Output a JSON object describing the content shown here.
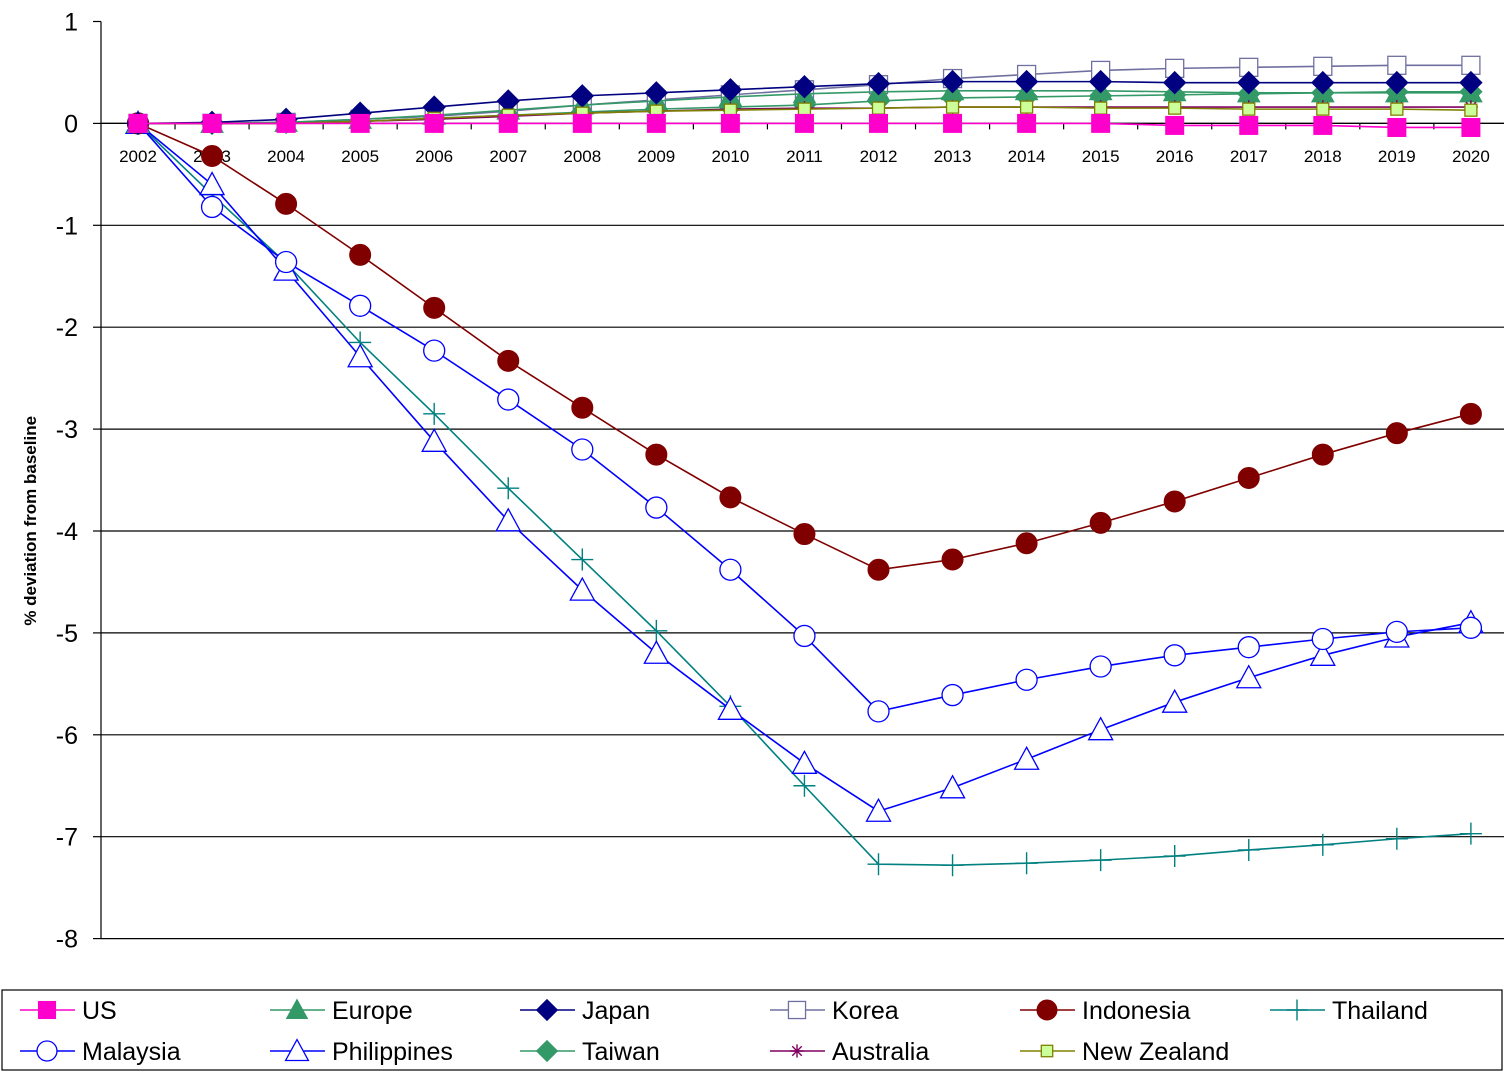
{
  "chart_data": {
    "type": "line",
    "title": "",
    "xlabel": "",
    "ylabel": "% deviation from baseline",
    "ylim": [
      -8,
      1
    ],
    "yticks": [
      "1",
      "0",
      "-1",
      "-2",
      "-3",
      "-4",
      "-5",
      "-6",
      "-7",
      "-8"
    ],
    "x": [
      "2002",
      "2003",
      "2004",
      "2005",
      "2006",
      "2007",
      "2008",
      "2009",
      "2010",
      "2011",
      "2012",
      "2013",
      "2014",
      "2015",
      "2016",
      "2017",
      "2018",
      "2019",
      "2020"
    ],
    "grid": "horizontal",
    "legend_position": "bottom",
    "series": [
      {
        "name": "US",
        "color": "#ff00cc",
        "marker": "square-filled",
        "values": [
          0,
          0,
          0,
          0,
          0,
          0,
          0,
          0,
          0,
          0,
          0,
          0,
          0,
          0,
          -0.02,
          -0.02,
          -0.02,
          -0.04,
          -0.04
        ]
      },
      {
        "name": "Europe",
        "color": "#339966",
        "marker": "triangle-filled",
        "values": [
          0,
          0,
          0.01,
          0.04,
          0.08,
          0.13,
          0.18,
          0.22,
          0.26,
          0.29,
          0.31,
          0.32,
          0.32,
          0.32,
          0.31,
          0.3,
          0.3,
          0.3,
          0.3
        ]
      },
      {
        "name": "Japan",
        "color": "#000080",
        "marker": "diamond-filled",
        "values": [
          0,
          0.01,
          0.04,
          0.1,
          0.16,
          0.22,
          0.27,
          0.3,
          0.33,
          0.36,
          0.39,
          0.41,
          0.41,
          0.41,
          0.4,
          0.4,
          0.4,
          0.4,
          0.4
        ]
      },
      {
        "name": "Korea",
        "color": "#7070a0",
        "marker": "square-open",
        "values": [
          0,
          0,
          0.01,
          0.04,
          0.07,
          0.12,
          0.18,
          0.23,
          0.28,
          0.33,
          0.38,
          0.44,
          0.48,
          0.52,
          0.54,
          0.55,
          0.56,
          0.57,
          0.57
        ]
      },
      {
        "name": "Indonesia",
        "color": "#800000",
        "marker": "circle-filled",
        "values": [
          0,
          -0.32,
          -0.79,
          -1.29,
          -1.81,
          -2.33,
          -2.79,
          -3.25,
          -3.67,
          -4.03,
          -4.38,
          -4.28,
          -4.12,
          -3.92,
          -3.71,
          -3.48,
          -3.25,
          -3.04,
          -2.85
        ]
      },
      {
        "name": "Thailand",
        "color": "#008080",
        "marker": "plus",
        "values": [
          0,
          -0.7,
          -1.37,
          -2.15,
          -2.85,
          -3.58,
          -4.28,
          -4.98,
          -5.72,
          -6.5,
          -7.27,
          -7.28,
          -7.26,
          -7.23,
          -7.19,
          -7.13,
          -7.08,
          -7.02,
          -6.97
        ]
      },
      {
        "name": "Malaysia",
        "color": "#0000ff",
        "marker": "circle-open",
        "values": [
          0,
          -0.82,
          -1.36,
          -1.79,
          -2.23,
          -2.71,
          -3.2,
          -3.77,
          -4.38,
          -5.03,
          -5.77,
          -5.61,
          -5.46,
          -5.33,
          -5.22,
          -5.14,
          -5.06,
          -4.99,
          -4.95
        ]
      },
      {
        "name": "Philippines",
        "color": "#0000ff",
        "marker": "triangle-open",
        "values": [
          0,
          -0.6,
          -1.44,
          -2.29,
          -3.12,
          -3.9,
          -4.58,
          -5.2,
          -5.75,
          -6.28,
          -6.75,
          -6.52,
          -6.24,
          -5.95,
          -5.68,
          -5.44,
          -5.22,
          -5.04,
          -4.9
        ]
      },
      {
        "name": "Taiwan",
        "color": "#339966",
        "marker": "diamond-filled",
        "values": [
          0,
          0,
          0.01,
          0.02,
          0.05,
          0.08,
          0.11,
          0.14,
          0.16,
          0.18,
          0.22,
          0.25,
          0.26,
          0.27,
          0.28,
          0.29,
          0.3,
          0.31,
          0.31
        ]
      },
      {
        "name": "Australia",
        "color": "#800060",
        "marker": "asterisk",
        "values": [
          0,
          0,
          0,
          0.02,
          0.04,
          0.07,
          0.1,
          0.12,
          0.14,
          0.15,
          0.15,
          0.16,
          0.16,
          0.16,
          0.16,
          0.16,
          0.16,
          0.16,
          0.16
        ]
      },
      {
        "name": "New Zealand",
        "color": "#808000",
        "marker": "square-lightgreen",
        "values": [
          0,
          0,
          0,
          0.02,
          0.05,
          0.08,
          0.1,
          0.12,
          0.13,
          0.14,
          0.15,
          0.16,
          0.16,
          0.15,
          0.15,
          0.14,
          0.14,
          0.14,
          0.13
        ]
      }
    ]
  }
}
